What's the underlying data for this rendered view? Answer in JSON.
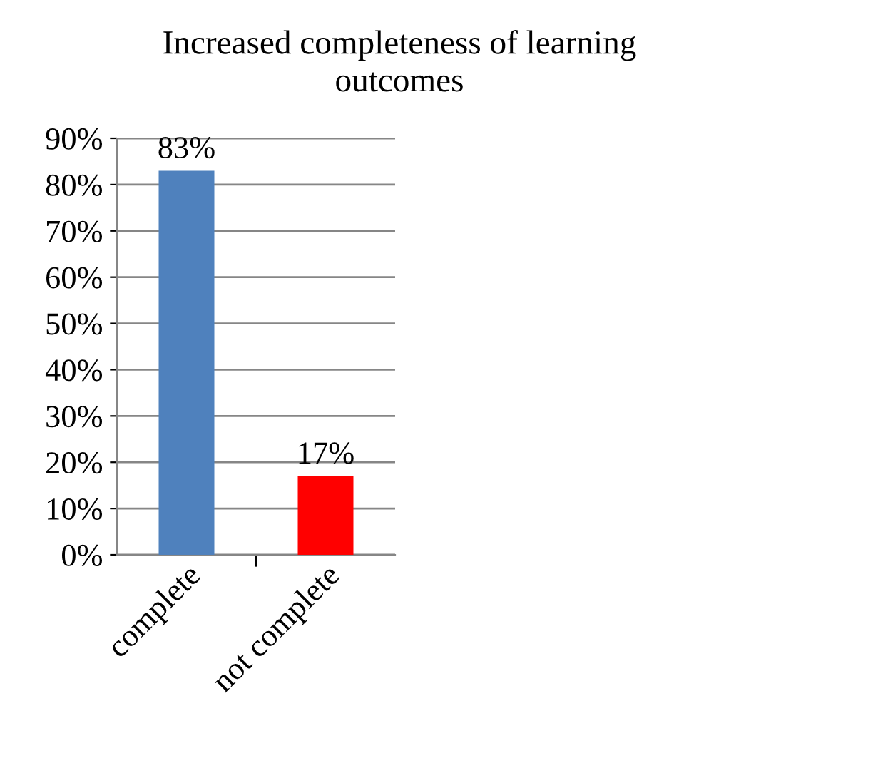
{
  "chart_data": {
    "type": "bar",
    "title": "Increased completeness of learning\noutcomes",
    "categories": [
      "complete",
      "not complete"
    ],
    "values": [
      83,
      17
    ],
    "colors": [
      "#4f81bd",
      "#ff0000"
    ],
    "value_labels": [
      "83%",
      "17%"
    ],
    "ylim": [
      0,
      90
    ],
    "yticks": [
      {
        "value": 0,
        "label": "0%"
      },
      {
        "value": 10,
        "label": "10%"
      },
      {
        "value": 20,
        "label": "20%"
      },
      {
        "value": 30,
        "label": "30%"
      },
      {
        "value": 40,
        "label": "40%"
      },
      {
        "value": 50,
        "label": "50%"
      },
      {
        "value": 60,
        "label": "60%"
      },
      {
        "value": 70,
        "label": "70%"
      },
      {
        "value": 80,
        "label": "80%"
      },
      {
        "value": 90,
        "label": "90%"
      }
    ],
    "grid": "y",
    "legend": false
  }
}
